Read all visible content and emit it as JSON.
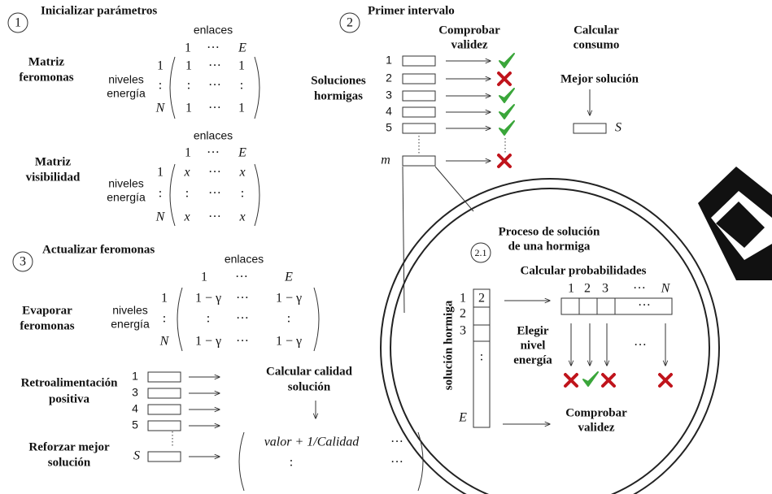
{
  "step1": {
    "number": "1",
    "title": "Inicializar parámetros",
    "pheromone_matrix": {
      "label": [
        "Matriz",
        "feromonas"
      ],
      "columns_title": "enlaces",
      "columns": [
        "1",
        "···",
        "E"
      ],
      "rows_title": [
        "niveles",
        "energía"
      ],
      "rows": [
        "1",
        ":",
        "N"
      ],
      "cells": [
        [
          "1",
          "···",
          "1"
        ],
        [
          ":",
          "···",
          ":"
        ],
        [
          "1",
          "···",
          "1"
        ]
      ]
    },
    "visibility_matrix": {
      "label": [
        "Matriz",
        "visibilidad"
      ],
      "columns_title": "enlaces",
      "columns": [
        "1",
        "···",
        "E"
      ],
      "rows_title": [
        "niveles",
        "energía"
      ],
      "rows": [
        "1",
        ":",
        "N"
      ],
      "cells": [
        [
          "x",
          "···",
          "x"
        ],
        [
          ":",
          "···",
          ":"
        ],
        [
          "x",
          "···",
          "x"
        ]
      ]
    }
  },
  "step2": {
    "number": "2",
    "title": "Primer intervalo",
    "check_header": [
      "Comprobar",
      "validez"
    ],
    "consumption_header": [
      "Calcular",
      "consumo"
    ],
    "ants_label": [
      "Soluciones",
      "hormigas"
    ],
    "ants": [
      "1",
      "2",
      "3",
      "4",
      "5",
      "m"
    ],
    "best_label": "Mejor  solución",
    "best_symbol": "S"
  },
  "step2_1": {
    "number": "2.1",
    "title": [
      "Proceso de solución",
      "de una hormiga"
    ],
    "probabilities_label": "Calcular probabilidades",
    "levels": [
      "1",
      "2",
      "3",
      "···",
      "N"
    ],
    "levels_box": "···",
    "vector_label": "solución hormiga",
    "vector_rows": [
      "1",
      "2",
      "3",
      "E"
    ],
    "vector_first_cell": "2",
    "vector_dots": ":",
    "choose_label": [
      "Elegir",
      "nivel",
      "energía"
    ],
    "choice_dots": "···",
    "validity_label": [
      "Comprobar",
      "validez"
    ]
  },
  "step3": {
    "number": "3",
    "title": "Actualizar feromonas",
    "evaporation_matrix": {
      "label": [
        "Evaporar",
        "feromonas"
      ],
      "columns_title": "enlaces",
      "columns": [
        "1",
        "···",
        "E"
      ],
      "rows_title": [
        "niveles",
        "energía"
      ],
      "rows": [
        "1",
        ":",
        "N"
      ],
      "cells": [
        [
          "1 − γ",
          "···",
          "1 − γ"
        ],
        [
          ":",
          "···",
          ":"
        ],
        [
          "1 − γ",
          "···",
          "1 − γ"
        ]
      ]
    },
    "feedback_label": [
      "Retroalimentación",
      "positiva"
    ],
    "feedback_ants": [
      "1",
      "3",
      "4",
      "5"
    ],
    "quality_label": [
      "Calcular calidad",
      "solución"
    ],
    "reinforce_label": [
      "Reforzar mejor",
      "solución"
    ],
    "best_symbol": "S",
    "reinforce_matrix": [
      [
        "valor + 1/Calidad",
        "···"
      ],
      [
        ":",
        "···"
      ]
    ]
  }
}
